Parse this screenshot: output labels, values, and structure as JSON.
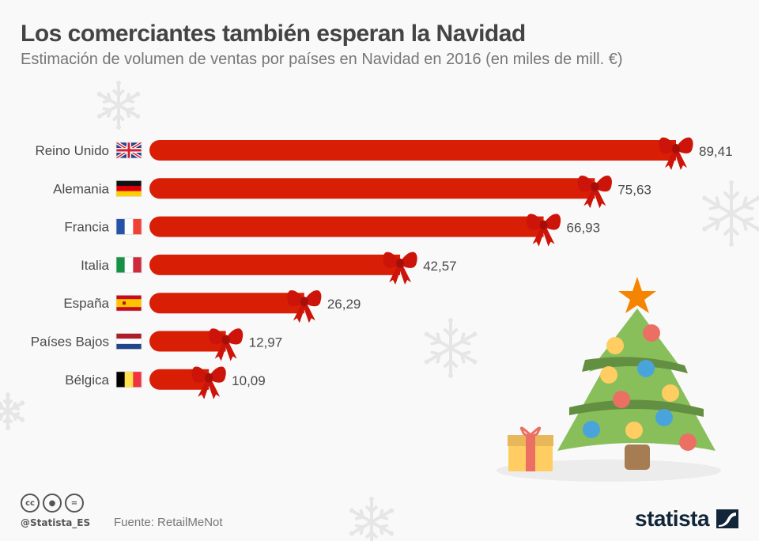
{
  "header": {
    "title": "Los comerciantes también esperan la Navidad",
    "subtitle": "Estimación de volumen de ventas por países en Navidad en 2016 (en miles de mill. €)"
  },
  "footer": {
    "cc_icons": [
      "cc",
      "by",
      "="
    ],
    "handle": "@Statista_ES",
    "source": "Fuente: RetailMeNot",
    "logo": "statista"
  },
  "chart_data": {
    "type": "bar",
    "orientation": "horizontal",
    "title": "Los comerciantes también esperan la Navidad",
    "subtitle": "Estimación de volumen de ventas por países en Navidad en 2016 (en miles de mill. €)",
    "categories": [
      "Reino Unido",
      "Alemania",
      "Francia",
      "Italia",
      "España",
      "Países Bajos",
      "Bélgica"
    ],
    "values": [
      89.41,
      75.63,
      66.93,
      42.57,
      26.29,
      12.97,
      10.09
    ],
    "value_labels": [
      "89,41",
      "75,63",
      "66,93",
      "42,57",
      "26,29",
      "12,97",
      "10,09"
    ],
    "flags": [
      "uk",
      "de",
      "fr",
      "it",
      "es",
      "nl",
      "be"
    ],
    "xlabel": "",
    "ylabel": "",
    "xlim": [
      0,
      89.41
    ],
    "grid": false,
    "bar_color": "#d81e05",
    "bow_color": "#c4170c"
  }
}
